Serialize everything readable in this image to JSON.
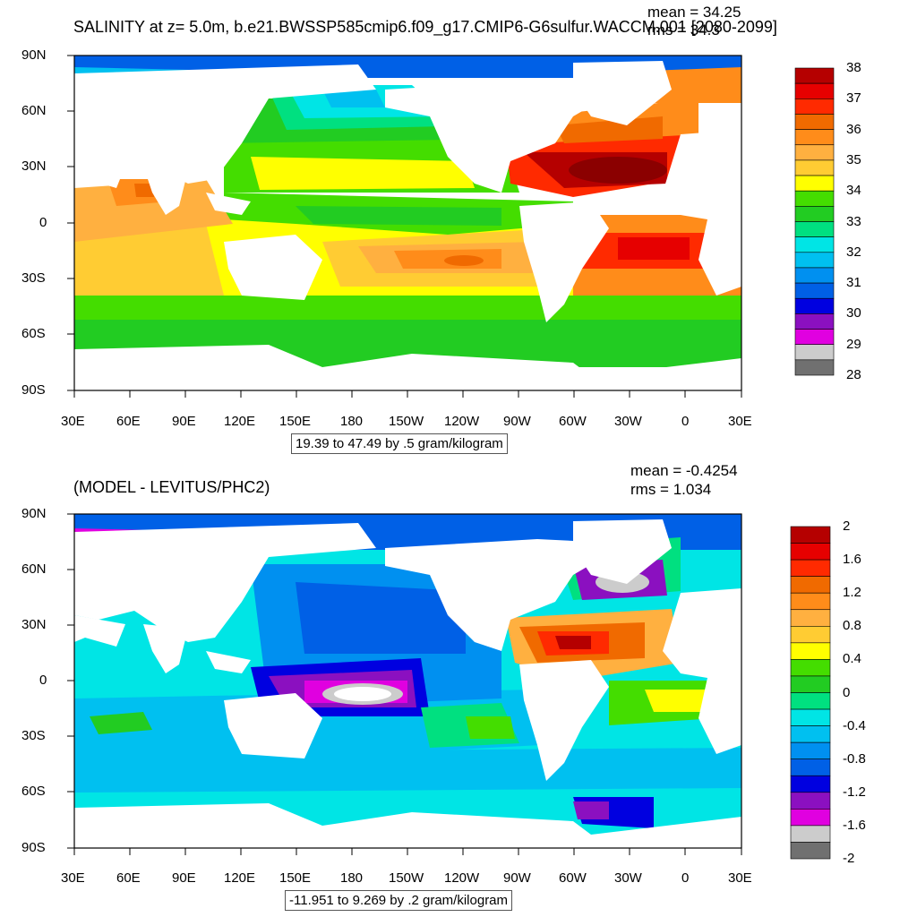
{
  "panels": [
    {
      "title": "SALINITY at z=   5.0m, b.e21.BWSSP585cmip6.f09_g17.CMIP6-G6sulfur.WACCM.001 [2080-2099]",
      "mean_text": "mean = 34.25",
      "rms_text": "rms = 34.3",
      "info_text": "19.39 to 47.49 by .5 gram/kilogram",
      "colorbar": {
        "labels": [
          "38",
          "37",
          "36",
          "35",
          "34",
          "33",
          "32",
          "31",
          "30",
          "29",
          "28"
        ],
        "colors_top_to_bottom": [
          "#b50000",
          "#e60000",
          "#ff2a00",
          "#f06a00",
          "#ff8c1a",
          "#ffb040",
          "#ffcc33",
          "#ffff00",
          "#44dd00",
          "#22cc22",
          "#00e080",
          "#00e5e5",
          "#00c0f0",
          "#0090f0",
          "#0060e6",
          "#0000e0",
          "#8b10c0",
          "#e000e0",
          "#cccccc",
          "#707070"
        ]
      }
    },
    {
      "title": "(MODEL - LEVITUS/PHC2)",
      "mean_text": "mean = -0.4254",
      "rms_text": "rms = 1.034",
      "info_text": "-11.951 to 9.269 by .2 gram/kilogram",
      "colorbar": {
        "labels": [
          "2",
          "1.6",
          "1.2",
          "0.8",
          "0.4",
          "0",
          "-0.4",
          "-0.8",
          "-1.2",
          "-1.6",
          "-2"
        ],
        "colors_top_to_bottom": [
          "#b50000",
          "#e60000",
          "#ff2a00",
          "#f06a00",
          "#ff8c1a",
          "#ffb040",
          "#ffcc33",
          "#ffff00",
          "#44dd00",
          "#22cc22",
          "#00e080",
          "#00e5e5",
          "#00c0f0",
          "#0090f0",
          "#0060e6",
          "#0000e0",
          "#8b10c0",
          "#e000e0",
          "#cccccc",
          "#707070"
        ]
      }
    }
  ],
  "lat_labels": [
    "90N",
    "60N",
    "30N",
    "0",
    "30S",
    "60S",
    "90S"
  ],
  "lon_labels": [
    "30E",
    "60E",
    "90E",
    "120E",
    "150E",
    "180",
    "150W",
    "120W",
    "90W",
    "60W",
    "30W",
    "0",
    "30E"
  ],
  "land_color": "#ffffff"
}
